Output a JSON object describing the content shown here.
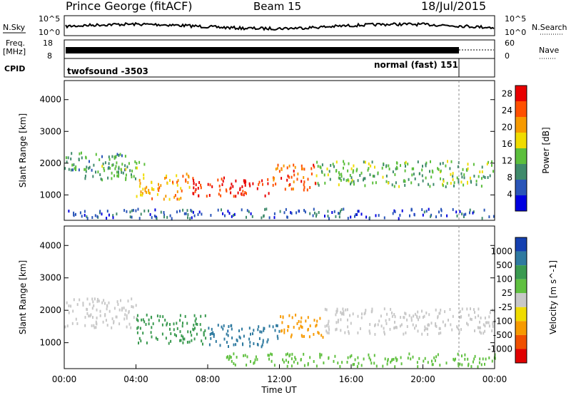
{
  "header": {
    "station": "Prince George (fitACF)",
    "beam": "Beam 15",
    "date": "18/Jul/2015"
  },
  "panels": {
    "nsky": {
      "label": "N.Sky",
      "ticks": [
        "10^5",
        "10^0"
      ],
      "right_label": "N.Search",
      "right_ticks": [
        "10^5",
        "10^0"
      ]
    },
    "freq": {
      "label": [
        "Freq.",
        "[MHz]"
      ],
      "ticks": [
        "18",
        "8"
      ],
      "right_label": "Nave",
      "right_ticks": [
        "60",
        "0"
      ]
    },
    "cpid": {
      "label": "CPID",
      "segments": [
        {
          "text": "twofsound -3503",
          "start": "00:00",
          "end": "21:55"
        },
        {
          "text": "normal (fast) 151",
          "start": "21:55",
          "end": "24:00"
        }
      ]
    }
  },
  "chart_data": [
    {
      "type": "heatmap",
      "name": "power",
      "xlabel": "",
      "ylabel": "Slant Range [km]",
      "xlim": [
        "00:00",
        "24:00"
      ],
      "ylim": [
        200,
        4600
      ],
      "y_ticks": [
        1000,
        2000,
        3000,
        4000
      ],
      "colorbar": {
        "label": "Power [dB]",
        "ticks": [
          4,
          8,
          12,
          16,
          20,
          24,
          28
        ],
        "range": [
          0,
          30
        ]
      },
      "colors": [
        "#0000e0",
        "#2a55b8",
        "#3f8a6b",
        "#5cbf3c",
        "#f0dc00",
        "#f79a00",
        "#ff5000",
        "#e80000"
      ],
      "regions": [
        {
          "t0": 0.0,
          "t1": 3.5,
          "r0": 1800,
          "r1": 2400,
          "value": 10
        },
        {
          "t0": 1.0,
          "t1": 4.5,
          "r0": 1500,
          "r1": 2100,
          "value": 12
        },
        {
          "t0": 4.0,
          "t1": 7.0,
          "r0": 900,
          "r1": 1700,
          "value": 20
        },
        {
          "t0": 7.0,
          "t1": 11.5,
          "r0": 1000,
          "r1": 1600,
          "value": 27
        },
        {
          "t0": 11.5,
          "t1": 14.0,
          "r0": 1200,
          "r1": 2000,
          "value": 24
        },
        {
          "t0": 14.0,
          "t1": 24.0,
          "r0": 1300,
          "r1": 2100,
          "value": 12
        },
        {
          "t0": 0.0,
          "t1": 24.0,
          "r0": 300,
          "r1": 600,
          "value": 6
        }
      ]
    },
    {
      "type": "heatmap",
      "name": "velocity",
      "xlabel": "Time UT",
      "ylabel": "Slant Range [km]",
      "xlim": [
        "00:00",
        "24:00"
      ],
      "ylim": [
        200,
        4600
      ],
      "x_ticks": [
        "00:00",
        "04:00",
        "08:00",
        "12:00",
        "16:00",
        "20:00",
        "00:00"
      ],
      "y_ticks": [
        1000,
        2000,
        3000,
        4000
      ],
      "colorbar": {
        "label": "Velocity [m s^-1]",
        "ticks": [
          1000,
          500,
          100,
          25,
          -25,
          -100,
          -500,
          -1000
        ]
      },
      "colors": [
        "#1540b0",
        "#2f7aa0",
        "#3a9a50",
        "#60c040",
        "#c8c8c8",
        "#f0dc00",
        "#f79a00",
        "#f05000",
        "#e00000"
      ],
      "regions": [
        {
          "t0": 0.0,
          "t1": 4.0,
          "r0": 1500,
          "r1": 2400,
          "value": 0
        },
        {
          "t0": 4.0,
          "t1": 8.0,
          "r0": 1000,
          "r1": 1900,
          "value": 150
        },
        {
          "t0": 8.0,
          "t1": 12.0,
          "r0": 900,
          "r1": 1600,
          "value": 300
        },
        {
          "t0": 12.0,
          "t1": 14.5,
          "r0": 1200,
          "r1": 1900,
          "value": -200
        },
        {
          "t0": 14.5,
          "t1": 24.0,
          "r0": 1300,
          "r1": 2100,
          "value": 0
        },
        {
          "t0": 9.0,
          "t1": 24.0,
          "r0": 300,
          "r1": 700,
          "value": 60
        }
      ]
    }
  ]
}
